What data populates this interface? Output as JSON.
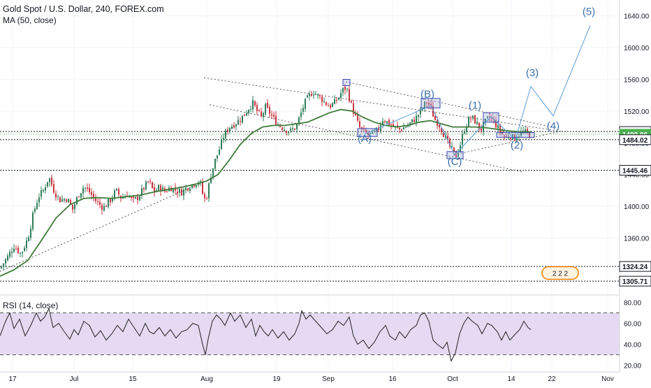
{
  "header": {
    "symbol_line": "Gold Spot / U.S. Dollar, 240, FOREX.com",
    "ma_label": "MA (50, close)",
    "rsi_label": "RSI (14, close)"
  },
  "chart_data": [
    {
      "type": "candlestick",
      "title": "Gold Spot / U.S. Dollar, 240, FOREX.com",
      "x_ticks": [
        "17",
        "Jul",
        "15",
        "Aug",
        "19",
        "Sep",
        "16",
        "Oct",
        "14",
        "22",
        "Nov"
      ],
      "y_ticks": [
        1360.0,
        1400.0,
        1440.0,
        1480.0,
        1520.0,
        1560.0,
        1600.0,
        1640.0
      ],
      "ylim": [
        1290,
        1660
      ],
      "price_labels": [
        {
          "value": 1494.25,
          "text": "1494.25",
          "color": "#131722",
          "bg": "#ffffff"
        },
        {
          "value": 1490.96,
          "text": "1490.96",
          "color": "#ffffff",
          "bg": "#4caf50"
        },
        {
          "value": 1484.02,
          "text": "1484.02",
          "color": "#131722",
          "bg": "#ffffff"
        },
        {
          "value": 1445.46,
          "text": "1445.46",
          "color": "#131722",
          "bg": "#ffffff"
        },
        {
          "value": 1324.24,
          "text": "1324.24",
          "color": "#131722",
          "bg": "#ffffff"
        },
        {
          "value": 1305.71,
          "text": "1305.71",
          "color": "#131722",
          "bg": "#ffffff"
        }
      ],
      "horizontal_levels": [
        1494.25,
        1484.02,
        1445.46,
        1324.24,
        1305.71
      ],
      "current_price": 1490.96,
      "close_path": [
        [
          0,
          1322
        ],
        [
          10,
          1335
        ],
        [
          20,
          1350
        ],
        [
          30,
          1340
        ],
        [
          40,
          1360
        ],
        [
          48,
          1392
        ],
        [
          55,
          1412
        ],
        [
          62,
          1420
        ],
        [
          70,
          1437
        ],
        [
          78,
          1418
        ],
        [
          86,
          1408
        ],
        [
          96,
          1410
        ],
        [
          104,
          1396
        ],
        [
          112,
          1414
        ],
        [
          120,
          1425
        ],
        [
          128,
          1418
        ],
        [
          138,
          1406
        ],
        [
          148,
          1398
        ],
        [
          158,
          1408
        ],
        [
          166,
          1420
        ],
        [
          174,
          1410
        ],
        [
          182,
          1416
        ],
        [
          190,
          1406
        ],
        [
          198,
          1412
        ],
        [
          205,
          1422
        ],
        [
          213,
          1432
        ],
        [
          220,
          1418
        ],
        [
          228,
          1424
        ],
        [
          236,
          1419
        ],
        [
          244,
          1424
        ],
        [
          252,
          1420
        ],
        [
          260,
          1418
        ],
        [
          268,
          1424
        ],
        [
          276,
          1428
        ],
        [
          286,
          1432
        ],
        [
          292,
          1408
        ],
        [
          296,
          1413
        ],
        [
          302,
          1440
        ],
        [
          308,
          1458
        ],
        [
          314,
          1472
        ],
        [
          320,
          1488
        ],
        [
          328,
          1500
        ],
        [
          336,
          1504
        ],
        [
          344,
          1510
        ],
        [
          350,
          1516
        ],
        [
          356,
          1524
        ],
        [
          362,
          1530
        ],
        [
          368,
          1520
        ],
        [
          374,
          1512
        ],
        [
          380,
          1525
        ],
        [
          386,
          1518
        ],
        [
          392,
          1510
        ],
        [
          400,
          1502
        ],
        [
          408,
          1497
        ],
        [
          416,
          1495
        ],
        [
          424,
          1500
        ],
        [
          430,
          1515
        ],
        [
          436,
          1530
        ],
        [
          442,
          1538
        ],
        [
          448,
          1545
        ],
        [
          454,
          1540
        ],
        [
          460,
          1536
        ],
        [
          466,
          1530
        ],
        [
          472,
          1526
        ],
        [
          478,
          1530
        ],
        [
          484,
          1536
        ],
        [
          490,
          1546
        ],
        [
          496,
          1550
        ],
        [
          502,
          1530
        ],
        [
          508,
          1515
        ],
        [
          514,
          1500
        ],
        [
          520,
          1494
        ],
        [
          528,
          1490
        ],
        [
          536,
          1492
        ],
        [
          542,
          1498
        ],
        [
          548,
          1510
        ],
        [
          556,
          1505
        ],
        [
          564,
          1500
        ],
        [
          572,
          1497
        ],
        [
          580,
          1500
        ],
        [
          588,
          1505
        ],
        [
          596,
          1512
        ],
        [
          604,
          1522
        ],
        [
          610,
          1532
        ],
        [
          616,
          1526
        ],
        [
          622,
          1510
        ],
        [
          628,
          1504
        ],
        [
          636,
          1490
        ],
        [
          642,
          1478
        ],
        [
          648,
          1470
        ],
        [
          652,
          1462
        ],
        [
          658,
          1475
        ],
        [
          664,
          1495
        ],
        [
          670,
          1508
        ],
        [
          676,
          1512
        ],
        [
          682,
          1505
        ],
        [
          688,
          1496
        ],
        [
          694,
          1505
        ],
        [
          700,
          1512
        ],
        [
          706,
          1508
        ],
        [
          712,
          1500
        ],
        [
          718,
          1492
        ],
        [
          724,
          1486
        ],
        [
          730,
          1490
        ],
        [
          736,
          1485
        ],
        [
          742,
          1490
        ],
        [
          748,
          1494
        ],
        [
          754,
          1492
        ],
        [
          760,
          1491
        ]
      ],
      "ma_path": [
        [
          0,
          1312
        ],
        [
          20,
          1320
        ],
        [
          40,
          1332
        ],
        [
          60,
          1358
        ],
        [
          80,
          1385
        ],
        [
          100,
          1402
        ],
        [
          120,
          1410
        ],
        [
          140,
          1411
        ],
        [
          160,
          1410
        ],
        [
          180,
          1412
        ],
        [
          200,
          1414
        ],
        [
          220,
          1418
        ],
        [
          240,
          1421
        ],
        [
          260,
          1424
        ],
        [
          280,
          1428
        ],
        [
          296,
          1432
        ],
        [
          312,
          1440
        ],
        [
          328,
          1458
        ],
        [
          344,
          1478
        ],
        [
          360,
          1492
        ],
        [
          376,
          1500
        ],
        [
          392,
          1502
        ],
        [
          408,
          1502
        ],
        [
          424,
          1504
        ],
        [
          440,
          1506
        ],
        [
          456,
          1512
        ],
        [
          472,
          1518
        ],
        [
          488,
          1522
        ],
        [
          504,
          1520
        ],
        [
          520,
          1512
        ],
        [
          536,
          1506
        ],
        [
          552,
          1502
        ],
        [
          568,
          1500
        ],
        [
          584,
          1502
        ],
        [
          600,
          1506
        ],
        [
          616,
          1508
        ],
        [
          632,
          1504
        ],
        [
          648,
          1500
        ],
        [
          664,
          1500
        ],
        [
          680,
          1500
        ],
        [
          696,
          1499
        ],
        [
          712,
          1497
        ],
        [
          728,
          1495
        ],
        [
          744,
          1494
        ],
        [
          760,
          1494
        ]
      ],
      "trendlines": [
        {
          "from": [
            292,
            1562
          ],
          "to": [
            800,
            1495
          ]
        },
        {
          "from": [
            300,
            1528
          ],
          "to": [
            750,
            1443
          ]
        },
        {
          "from": [
            0,
            1318
          ],
          "to": [
            295,
            1432
          ]
        },
        {
          "from": [
            495,
            1557
          ],
          "to": [
            790,
            1500
          ]
        },
        {
          "from": [
            650,
            1465
          ],
          "to": [
            805,
            1495
          ]
        }
      ],
      "wave_path": [
        [
          522,
          1491
        ],
        [
          617,
          1527
        ],
        [
          651,
          1465
        ],
        [
          703,
          1513
        ],
        [
          738,
          1484
        ],
        [
          760,
          1551
        ],
        [
          792,
          1514
        ],
        [
          845,
          1628
        ]
      ],
      "wave_labels": [
        {
          "text": "(A)",
          "x": 522,
          "y": 1481
        },
        {
          "text": "(B)",
          "x": 612,
          "y": 1537
        },
        {
          "text": "(C)",
          "x": 651,
          "y": 1452
        },
        {
          "text": "(1)",
          "x": 680,
          "y": 1523
        },
        {
          "text": "(2)",
          "x": 740,
          "y": 1473
        },
        {
          "text": "(3)",
          "x": 762,
          "y": 1564
        },
        {
          "text": "(4)",
          "x": 792,
          "y": 1497
        },
        {
          "text": "(5)",
          "x": 843,
          "y": 1641
        }
      ],
      "boxes": [
        {
          "x0": 512,
          "x1": 540,
          "y0": 1488,
          "y1": 1498
        },
        {
          "x0": 603,
          "x1": 630,
          "y0": 1524,
          "y1": 1536
        },
        {
          "x0": 640,
          "x1": 663,
          "y0": 1460,
          "y1": 1469
        },
        {
          "x0": 692,
          "x1": 714,
          "y0": 1506,
          "y1": 1518
        },
        {
          "x0": 491,
          "x1": 501,
          "y0": 1552,
          "y1": 1560
        },
        {
          "x0": 711,
          "x1": 765,
          "y0": 1487,
          "y1": 1493
        }
      ],
      "flag_text": "2 2 2"
    },
    {
      "type": "line",
      "title": "RSI (14, close)",
      "y_ticks": [
        20.0,
        40.0,
        60.0,
        80.0
      ],
      "ylim": [
        15,
        85
      ],
      "band": [
        30,
        70
      ],
      "rsi_path": [
        [
          0,
          48
        ],
        [
          8,
          62
        ],
        [
          14,
          70
        ],
        [
          20,
          55
        ],
        [
          28,
          64
        ],
        [
          36,
          48
        ],
        [
          44,
          58
        ],
        [
          52,
          70
        ],
        [
          58,
          62
        ],
        [
          64,
          66
        ],
        [
          70,
          74
        ],
        [
          76,
          56
        ],
        [
          84,
          60
        ],
        [
          92,
          52
        ],
        [
          100,
          45
        ],
        [
          106,
          54
        ],
        [
          112,
          49
        ],
        [
          120,
          62
        ],
        [
          128,
          58
        ],
        [
          136,
          47
        ],
        [
          144,
          53
        ],
        [
          152,
          44
        ],
        [
          160,
          50
        ],
        [
          168,
          58
        ],
        [
          176,
          52
        ],
        [
          184,
          64
        ],
        [
          192,
          56
        ],
        [
          200,
          48
        ],
        [
          208,
          60
        ],
        [
          214,
          52
        ],
        [
          220,
          50
        ],
        [
          228,
          56
        ],
        [
          236,
          48
        ],
        [
          244,
          54
        ],
        [
          252,
          46
        ],
        [
          260,
          52
        ],
        [
          268,
          54
        ],
        [
          276,
          60
        ],
        [
          284,
          58
        ],
        [
          290,
          40
        ],
        [
          294,
          30
        ],
        [
          298,
          45
        ],
        [
          304,
          62
        ],
        [
          310,
          68
        ],
        [
          316,
          64
        ],
        [
          322,
          58
        ],
        [
          330,
          70
        ],
        [
          336,
          62
        ],
        [
          344,
          68
        ],
        [
          352,
          56
        ],
        [
          360,
          64
        ],
        [
          366,
          48
        ],
        [
          372,
          58
        ],
        [
          378,
          52
        ],
        [
          384,
          48
        ],
        [
          390,
          54
        ],
        [
          398,
          46
        ],
        [
          406,
          52
        ],
        [
          414,
          44
        ],
        [
          422,
          50
        ],
        [
          428,
          60
        ],
        [
          432,
          72
        ],
        [
          438,
          64
        ],
        [
          444,
          68
        ],
        [
          452,
          62
        ],
        [
          460,
          56
        ],
        [
          468,
          50
        ],
        [
          476,
          54
        ],
        [
          484,
          62
        ],
        [
          492,
          58
        ],
        [
          500,
          66
        ],
        [
          506,
          48
        ],
        [
          512,
          40
        ],
        [
          520,
          44
        ],
        [
          528,
          36
        ],
        [
          536,
          42
        ],
        [
          544,
          52
        ],
        [
          552,
          58
        ],
        [
          558,
          48
        ],
        [
          566,
          44
        ],
        [
          572,
          52
        ],
        [
          580,
          46
        ],
        [
          588,
          54
        ],
        [
          596,
          58
        ],
        [
          602,
          68
        ],
        [
          608,
          70
        ],
        [
          614,
          62
        ],
        [
          620,
          44
        ],
        [
          626,
          40
        ],
        [
          634,
          36
        ],
        [
          640,
          42
        ],
        [
          646,
          24
        ],
        [
          652,
          32
        ],
        [
          658,
          50
        ],
        [
          664,
          60
        ],
        [
          670,
          66
        ],
        [
          676,
          62
        ],
        [
          684,
          58
        ],
        [
          690,
          50
        ],
        [
          698,
          60
        ],
        [
          704,
          58
        ],
        [
          712,
          52
        ],
        [
          718,
          44
        ],
        [
          724,
          52
        ],
        [
          730,
          44
        ],
        [
          738,
          50
        ],
        [
          744,
          54
        ],
        [
          750,
          62
        ],
        [
          756,
          56
        ],
        [
          760,
          54
        ]
      ]
    }
  ]
}
